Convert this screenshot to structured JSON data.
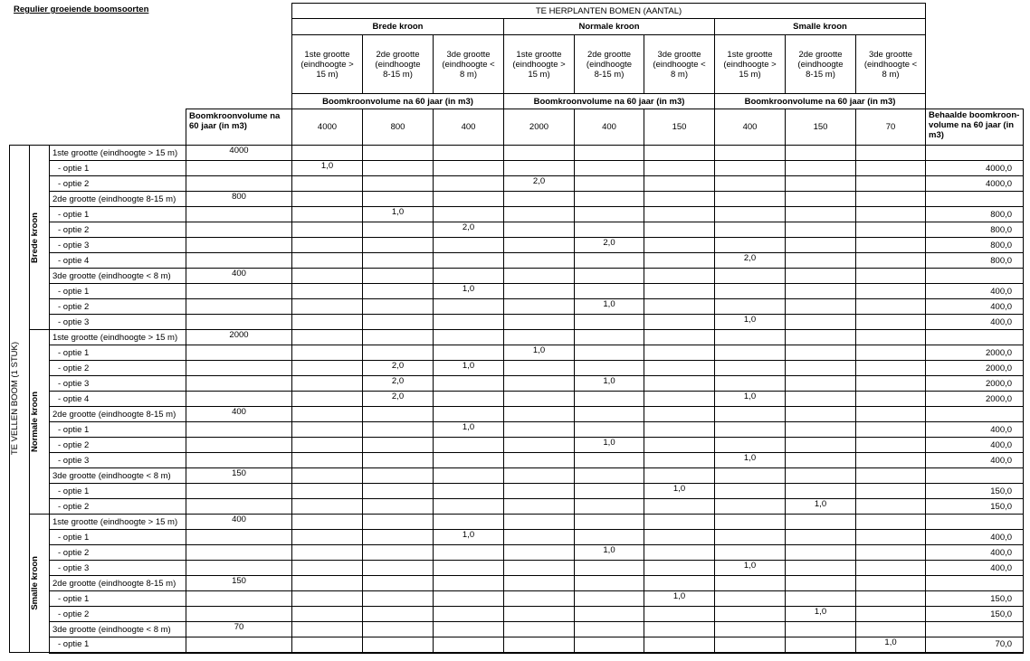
{
  "title": "Regulier groeiende boomsoorten",
  "header": {
    "top": "TE HERPLANTEN BOMEN (AANTAL)",
    "groups": [
      "Brede kroon",
      "Normale kroon",
      "Smalle kroon"
    ],
    "sizes": [
      "1ste grootte (eindhoogte > 15 m)",
      "2de grootte (eindhoogte 8-15 m)",
      "3de grootte (eindhoogte < 8 m)",
      "1ste grootte (eindhoogte > 15 m)",
      "2de grootte (eindhoogte 8-15 m)",
      "3de grootte (eindhoogte < 8 m)",
      "1ste grootte (eindhoogte > 15 m)",
      "2de grootte (eindhoogte 8-15 m)",
      "3de grootte (eindhoogte < 8 m)"
    ],
    "volume_label": "Boomkroonvolume na 60 jaar (in m3)",
    "row_volume_label": "Boomkroonvolume na 60 jaar (in m3)",
    "volumes": [
      "4000",
      "800",
      "400",
      "2000",
      "400",
      "150",
      "400",
      "150",
      "70"
    ],
    "result_label": "Behaalde boomkroon-volume na 60 jaar (in m3)"
  },
  "left_label": "TE VELLEN BOOM (1 STUK)",
  "sections": [
    {
      "label": "Brede kroon",
      "rows": [
        {
          "label": "1ste grootte (eindhoogte > 15 m)",
          "group": true,
          "volume": "4000"
        },
        {
          "label": "- optie 1",
          "cells": {
            "0": "1,0"
          },
          "result": "4000,0"
        },
        {
          "label": "- optie 2",
          "cells": {
            "3": "2,0"
          },
          "result": "4000,0"
        },
        {
          "label": "2de grootte (eindhoogte 8-15 m)",
          "group": true,
          "volume": "800"
        },
        {
          "label": "- optie 1",
          "cells": {
            "1": "1,0"
          },
          "result": "800,0"
        },
        {
          "label": "- optie 2",
          "cells": {
            "2": "2,0"
          },
          "result": "800,0"
        },
        {
          "label": "- optie 3",
          "cells": {
            "4": "2,0"
          },
          "result": "800,0"
        },
        {
          "label": "- optie 4",
          "cells": {
            "6": "2,0"
          },
          "result": "800,0"
        },
        {
          "label": "3de grootte (eindhoogte < 8 m)",
          "group": true,
          "volume": "400"
        },
        {
          "label": "- optie 1",
          "cells": {
            "2": "1,0"
          },
          "result": "400,0"
        },
        {
          "label": "- optie 2",
          "cells": {
            "4": "1,0"
          },
          "result": "400,0"
        },
        {
          "label": "- optie 3",
          "cells": {
            "6": "1,0"
          },
          "result": "400,0"
        }
      ]
    },
    {
      "label": "Normale kroon",
      "rows": [
        {
          "label": "1ste grootte (eindhoogte > 15 m)",
          "group": true,
          "volume": "2000"
        },
        {
          "label": "- optie 1",
          "cells": {
            "3": "1,0"
          },
          "result": "2000,0"
        },
        {
          "label": "- optie 2",
          "cells": {
            "1": "2,0",
            "2": "1,0"
          },
          "result": "2000,0"
        },
        {
          "label": "- optie 3",
          "cells": {
            "1": "2,0",
            "4": "1,0"
          },
          "result": "2000,0"
        },
        {
          "label": "- optie 4",
          "cells": {
            "1": "2,0",
            "6": "1,0"
          },
          "result": "2000,0"
        },
        {
          "label": "2de grootte (eindhoogte 8-15 m)",
          "group": true,
          "volume": "400"
        },
        {
          "label": "- optie 1",
          "cells": {
            "2": "1,0"
          },
          "result": "400,0"
        },
        {
          "label": "- optie 2",
          "cells": {
            "4": "1,0"
          },
          "result": "400,0"
        },
        {
          "label": "- optie 3",
          "cells": {
            "6": "1,0"
          },
          "result": "400,0"
        },
        {
          "label": "3de grootte (eindhoogte < 8 m)",
          "group": true,
          "volume": "150"
        },
        {
          "label": "- optie 1",
          "cells": {
            "5": "1,0"
          },
          "result": "150,0"
        },
        {
          "label": "- optie 2",
          "cells": {
            "7": "1,0"
          },
          "result": "150,0"
        }
      ]
    },
    {
      "label": "Smalle kroon",
      "rows": [
        {
          "label": "1ste grootte (eindhoogte > 15 m)",
          "group": true,
          "volume": "400"
        },
        {
          "label": "- optie 1",
          "cells": {
            "2": "1,0"
          },
          "result": "400,0"
        },
        {
          "label": "- optie 2",
          "cells": {
            "4": "1,0"
          },
          "result": "400,0"
        },
        {
          "label": "- optie 3",
          "cells": {
            "6": "1,0"
          },
          "result": "400,0"
        },
        {
          "label": "2de grootte (eindhoogte 8-15 m)",
          "group": true,
          "volume": "150"
        },
        {
          "label": "- optie 1",
          "cells": {
            "5": "1,0"
          },
          "result": "150,0"
        },
        {
          "label": "- optie 2",
          "cells": {
            "7": "1,0"
          },
          "result": "150,0"
        },
        {
          "label": "3de grootte (eindhoogte < 8 m)",
          "group": true,
          "volume": "70"
        },
        {
          "label": "- optie 1",
          "cells": {
            "8": "1,0"
          },
          "result": "70,0"
        }
      ]
    }
  ]
}
